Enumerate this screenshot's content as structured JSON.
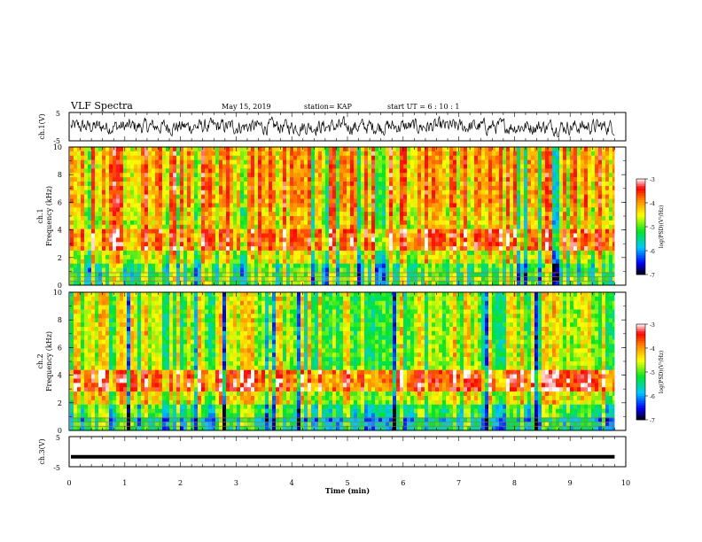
{
  "header": {
    "title": "VLF Spectra",
    "date": "May 15, 2019",
    "station": "station= KAP",
    "start": "start  UT =   6  : 10 : 1"
  },
  "chart_data": [
    {
      "type": "line",
      "id": "ch1-waveform",
      "ylabel": "ch.1(V)",
      "ylim": [
        -5,
        5
      ],
      "yticks": [
        "5",
        "-5"
      ],
      "xlim": [
        0,
        10
      ],
      "x_range_data": [
        0,
        9.8
      ],
      "description_values": {
        "center": 0,
        "amplitude": 2
      }
    },
    {
      "type": "heatmap",
      "id": "ch1-spectrogram",
      "ylabel": "ch.1\nFrequency (kHz)",
      "ylim": [
        0,
        10
      ],
      "yticks": [
        "0",
        "2",
        "4",
        "6",
        "8",
        "10"
      ],
      "xlim": [
        0,
        10
      ],
      "x_range_data": [
        0,
        9.8
      ],
      "colorbar": {
        "label": "log(PSD)(V²/Hz)",
        "range": [
          -7,
          -3
        ],
        "ticks": [
          "-3",
          "-4",
          "-5",
          "-6",
          "-7"
        ]
      }
    },
    {
      "type": "heatmap",
      "id": "ch2-spectrogram",
      "ylabel": "ch.2\nFrequency (kHz)",
      "ylim": [
        0,
        10
      ],
      "yticks": [
        "0",
        "2",
        "4",
        "6",
        "8",
        "10"
      ],
      "xlim": [
        0,
        10
      ],
      "x_range_data": [
        0,
        9.8
      ],
      "colorbar": {
        "label": "log(PSD)(V²/Hz)",
        "range": [
          -7,
          -3
        ],
        "ticks": [
          "-3",
          "-4",
          "-5",
          "-6",
          "-7"
        ]
      }
    },
    {
      "type": "line",
      "id": "ch3-waveform",
      "ylabel": "ch.3(V)",
      "ylim": [
        -5,
        5
      ],
      "yticks": [
        "5",
        "-5"
      ],
      "xlim": [
        0,
        10
      ],
      "x_range_data": [
        0,
        9.8
      ],
      "values_constant": -1.7
    }
  ],
  "xaxis": {
    "label": "Time (min)",
    "ticks": [
      "0",
      "1",
      "2",
      "3",
      "4",
      "5",
      "6",
      "7",
      "8",
      "9",
      "10"
    ]
  },
  "colors": {
    "axis": "#000000",
    "waveform": "#000000",
    "colormap": [
      "#000000",
      "#0000ff",
      "#00c8ff",
      "#00ff00",
      "#ffff00",
      "#ff8000",
      "#ff0000",
      "#ffffff"
    ]
  }
}
